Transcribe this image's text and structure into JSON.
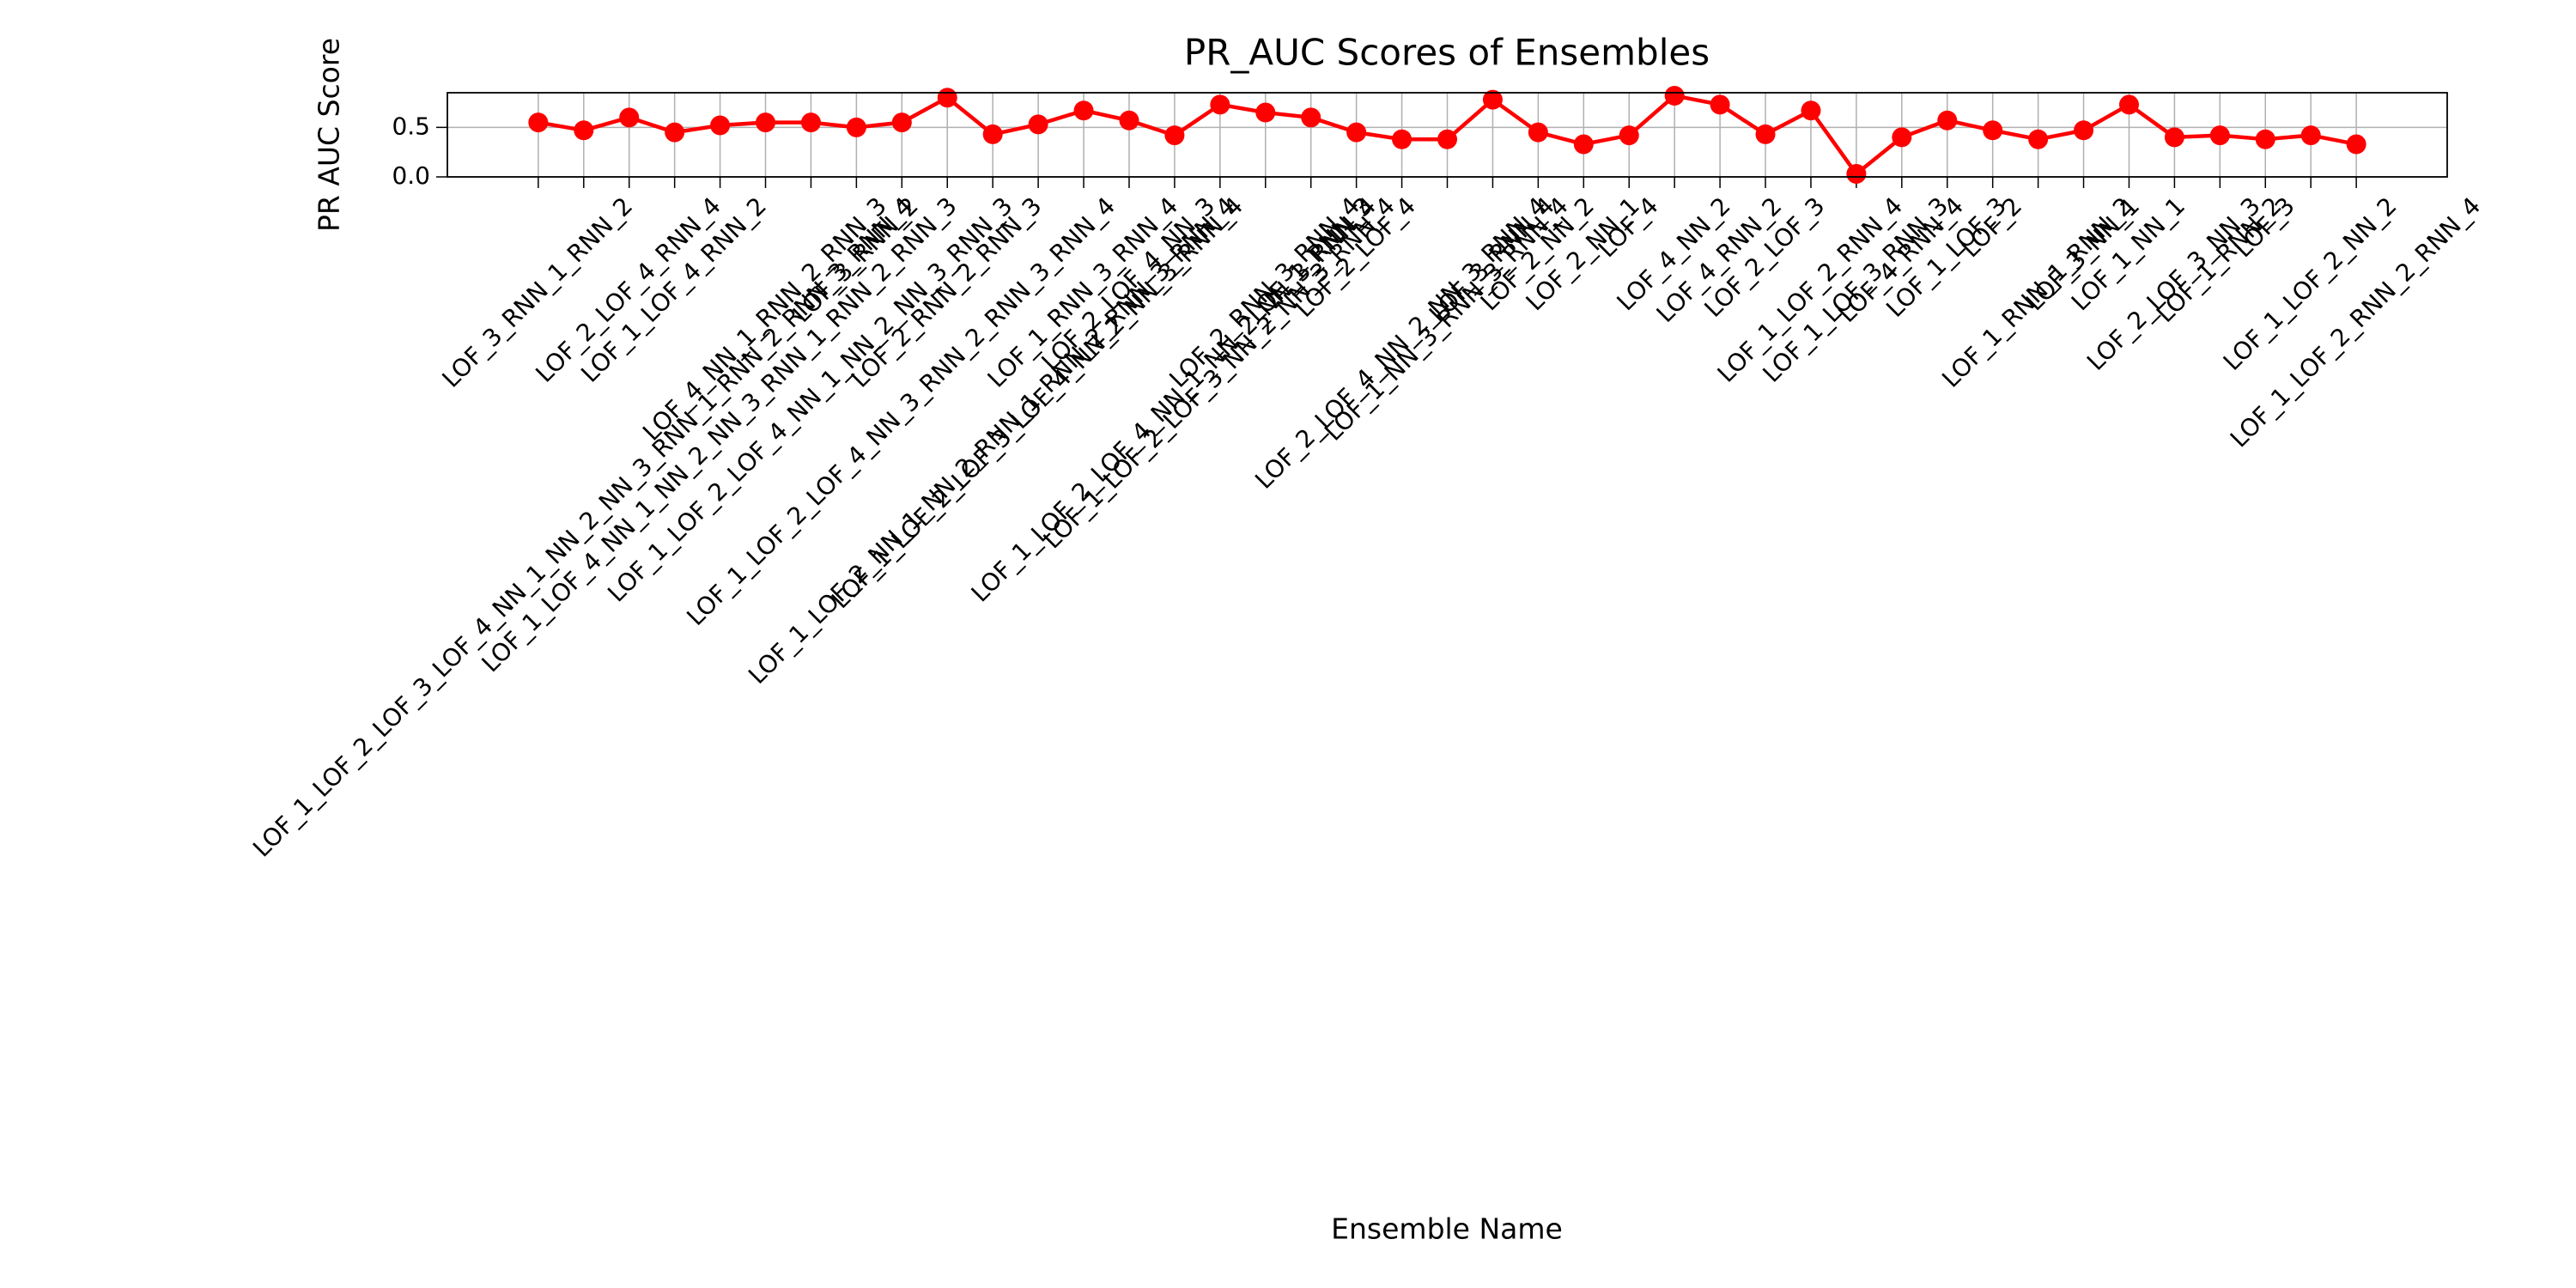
{
  "chart_data": {
    "type": "line",
    "title": "PR_AUC Scores of Ensembles",
    "xlabel": "Ensemble Name",
    "ylabel": "PR AUC Score",
    "categories": [
      "LOF_3_RNN_1_RNN_2",
      "LOF_1_LOF_2_LOF_3_LOF_4_NN_1_NN_2_NN_3_RNN_1_RNN_2_RNN_3_RNN_4",
      "LOF_2_LOF_4_RNN_4",
      "LOF_1_LOF_4_RNN_2",
      "LOF_1_LOF_4_NN_1_NN_2_NN_3_RNN_1_RNN_2_RNN_3",
      "LOF_4_NN_1_RNN_2_RNN_3",
      "LOF_1_LOF_2_LOF_4_NN_1_NN_2_NN_3_RNN_3",
      "LOF_3_RNN_2",
      "LOF_1_LOF_2_LOF_4_NN_3_RNN_2_RNN_3_RNN_4",
      "LOF_2_RNN_2_RNN_3",
      "LOF_1_LOF_2_NN_1_NN_2_RNN_1_RNN_2_RNN_3_RNN_4",
      "LOF_1_LOF_2_LOF_3_LOF_4_NN_2_NN_3_RNN_4",
      "LOF_1_RNN_3_RNN_4",
      "LOF_2_LOF_4_NN_3",
      "LOF_1_LOF_2_LOF_4_NN_1_NN_2_NN_3_RNN_4",
      "LOF_1_LOF_2_LOF_3_NN_2_NN_3_RNN_4",
      "LOF_2_RNN_3_RNN_4",
      "LOF_1_RNN_3",
      "LOF_2_LOF_4",
      "LOF_2_LOF_4_NN_2_NN_3_RNN_4",
      "LOF_1_NN_3_RNN_3_RNN_4",
      "LOF_3_RNN_4",
      "LOF_2_NN_2",
      "LOF_2_NN_1",
      "LOF_4",
      "LOF_4_NN_2",
      "LOF_4_RNN_2",
      "LOF_2_LOF_3",
      "LOF_1_LOF_2_RNN_4",
      "LOF_1_LOF_3_RNN_3",
      "LOF_4_RNN_4",
      "LOF_1_LOF_3",
      "LOF_2",
      "LOF_1_RNN_1_RNN_2",
      "LOF_3_NN_1",
      "LOF_1_NN_1",
      "LOF_2_LOF_3_NN_3",
      "LOF_1_RNN_2",
      "LOF_3",
      "LOF_1_LOF_2_NN_2",
      "LOF_1_LOF_2_RNN_2_RNN_4"
    ],
    "series": [
      {
        "name": "PR AUC",
        "color": "#ff0000",
        "values": [
          0.55,
          0.47,
          0.6,
          0.45,
          0.52,
          0.55,
          0.55,
          0.5,
          0.55,
          0.8,
          0.43,
          0.53,
          0.67,
          0.57,
          0.42,
          0.73,
          0.65,
          0.6,
          0.45,
          0.38,
          0.38,
          0.78,
          0.45,
          0.33,
          0.42,
          0.82,
          0.73,
          0.43,
          0.67,
          0.03,
          0.4,
          0.57,
          0.47,
          0.38,
          0.47,
          0.73,
          0.4,
          0.42,
          0.38,
          0.42,
          0.33
        ]
      }
    ],
    "ylim": [
      0,
      0.85
    ],
    "yticks": [
      {
        "value": 0,
        "label": "0.0"
      },
      {
        "value": 0.5,
        "label": "0.5"
      }
    ],
    "grid": true
  }
}
